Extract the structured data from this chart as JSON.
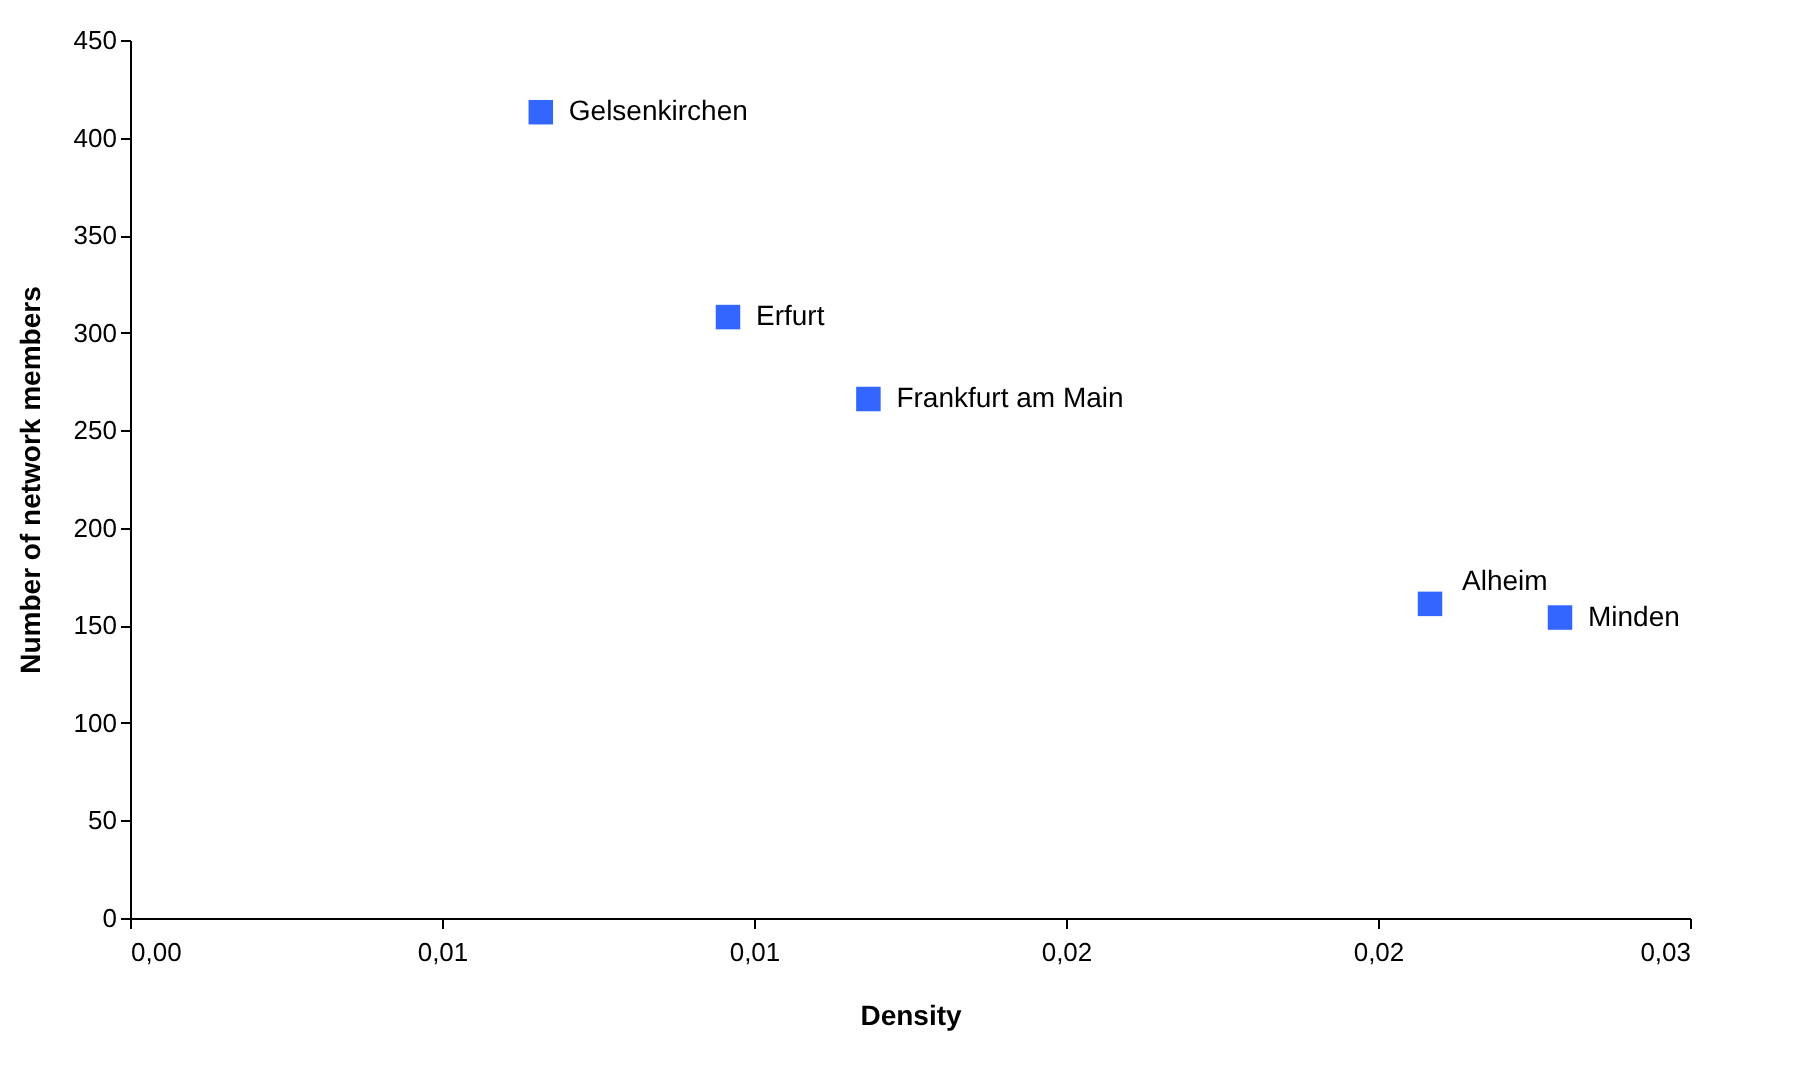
{
  "chart_data": {
    "type": "scatter",
    "xlabel": "Density",
    "ylabel": "Number of network members",
    "marker": "square",
    "grid": false,
    "x": [
      0.0079,
      0.0115,
      0.0142,
      0.025,
      0.0275
    ],
    "series": [
      {
        "color": "#3366ff",
        "values": [
          413,
          308,
          266,
          161,
          154
        ]
      }
    ],
    "xlim": [
      0,
      0.03
    ],
    "ylim": [
      0,
      450
    ],
    "xticks": [
      {
        "value": 0,
        "label": "0,00"
      },
      {
        "value": 0.006,
        "label": "0,01"
      },
      {
        "value": 0.012,
        "label": "0,01"
      },
      {
        "value": 0.018,
        "label": "0,02"
      },
      {
        "value": 0.024,
        "label": "0,02"
      },
      {
        "value": 0.03,
        "label": "0,03"
      }
    ],
    "yticks": [
      0,
      50,
      100,
      150,
      200,
      250,
      300,
      350,
      400,
      450
    ],
    "annotations": [
      {
        "text": "Gelsenkirchen",
        "x": 0.0079,
        "y": 413
      },
      {
        "text": "Erfurt",
        "x": 0.0115,
        "y": 308
      },
      {
        "text": "Frankfurt am Main",
        "x": 0.0142,
        "y": 266
      },
      {
        "text": "Alheim",
        "x": 0.025,
        "y": 161
      },
      {
        "text": "Minden",
        "x": 0.0275,
        "y": 154
      }
    ]
  }
}
